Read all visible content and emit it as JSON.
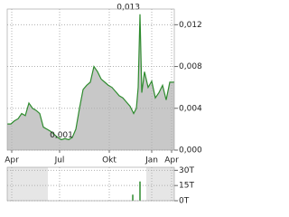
{
  "chart_data": [
    {
      "type": "area",
      "x": [
        8,
        12,
        16,
        20,
        24,
        28,
        32,
        36,
        40,
        44,
        48,
        52,
        56,
        60,
        64,
        68,
        72,
        76,
        80,
        84,
        88,
        92,
        96,
        100,
        104,
        108,
        112,
        116,
        120,
        124,
        128,
        132,
        136,
        140,
        144,
        148,
        151,
        153,
        155,
        157,
        160,
        164,
        168,
        172,
        176,
        180,
        184,
        188,
        193
      ],
      "values": [
        0.0025,
        0.0025,
        0.0028,
        0.003,
        0.0035,
        0.0033,
        0.0045,
        0.004,
        0.0038,
        0.0035,
        0.0022,
        0.002,
        0.0018,
        0.0015,
        0.0012,
        0.001,
        0.0011,
        0.001,
        0.0012,
        0.002,
        0.004,
        0.0058,
        0.0062,
        0.0065,
        0.008,
        0.0075,
        0.0068,
        0.0065,
        0.0062,
        0.006,
        0.0056,
        0.0052,
        0.005,
        0.0046,
        0.0042,
        0.0035,
        0.004,
        0.006,
        0.013,
        0.0055,
        0.0075,
        0.006,
        0.0066,
        0.005,
        0.0055,
        0.0062,
        0.0048,
        0.0065,
        0.0065
      ],
      "color": "#2e8b2e",
      "fill": "#c8c8c8",
      "xlim": [
        8,
        193
      ],
      "xticks": [
        {
          "value": 13,
          "label": "Apr"
        },
        {
          "value": 66,
          "label": "Jul"
        },
        {
          "value": 121,
          "label": "Okt"
        },
        {
          "value": 168,
          "label": "Jan"
        },
        {
          "value": 190,
          "label": "Apr"
        }
      ],
      "ylim": [
        0,
        0.0135
      ],
      "yticks": [
        {
          "value": 0,
          "label": "0,000"
        },
        {
          "value": 0.004,
          "label": "0,004"
        },
        {
          "value": 0.008,
          "label": "0,008"
        },
        {
          "value": 0.012,
          "label": "0,012"
        }
      ],
      "annotations": [
        {
          "text": "0,013",
          "x": 155,
          "y": 0.013
        },
        {
          "text": "0,001",
          "x": 68,
          "y": 0.001
        }
      ],
      "grid": true
    },
    {
      "type": "bar",
      "x": [
        147,
        155
      ],
      "values": [
        6,
        19
      ],
      "color": "#2e8b2e",
      "xlim": [
        8,
        193
      ],
      "ylim": [
        0,
        33
      ],
      "yticks": [
        {
          "value": 0,
          "label": "0T"
        },
        {
          "value": 15,
          "label": "15T"
        },
        {
          "value": 30,
          "label": "30T"
        }
      ],
      "grid": true
    }
  ]
}
